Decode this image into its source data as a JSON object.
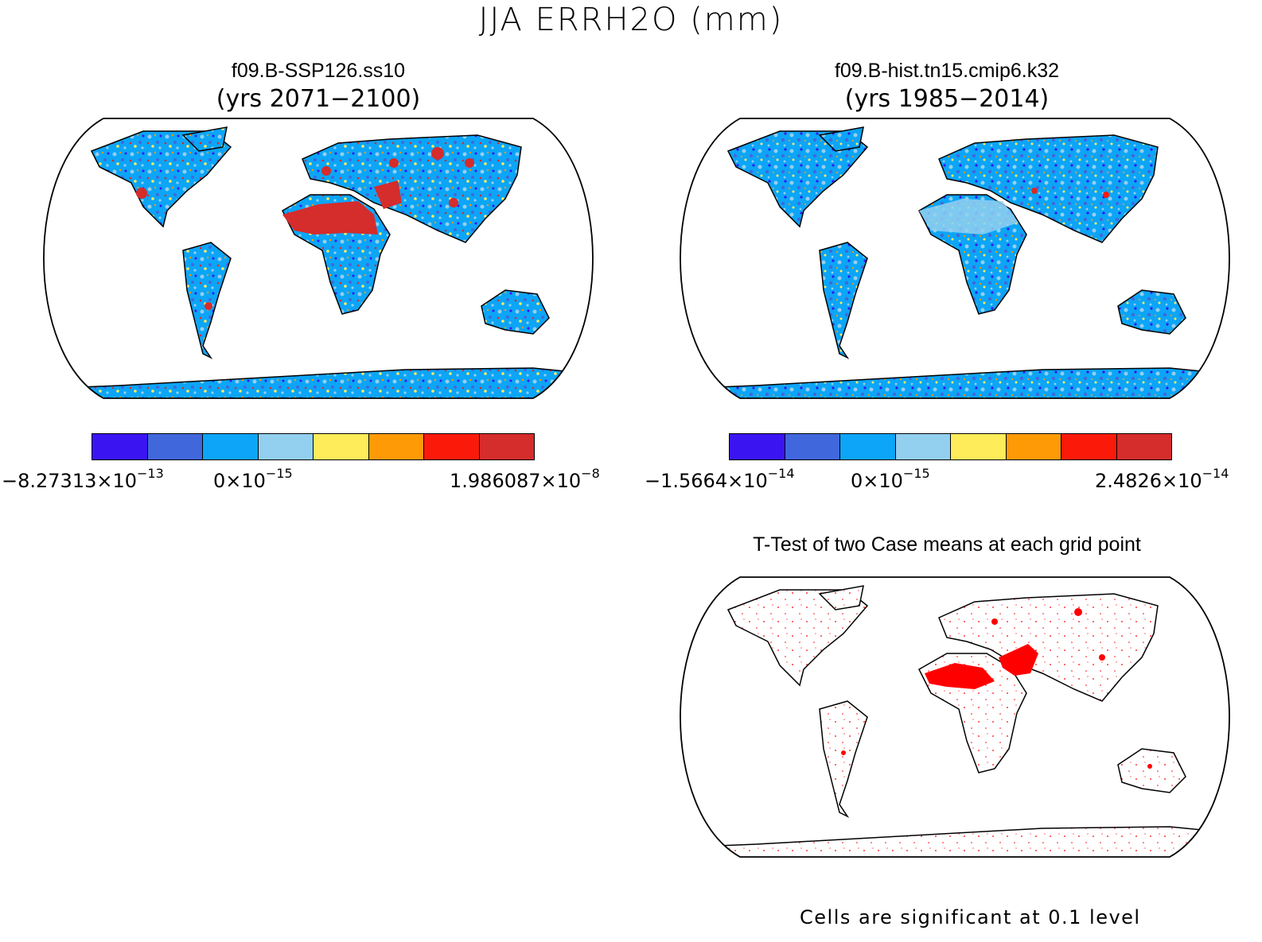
{
  "figure": {
    "title": "JJA ERRH2O (mm)",
    "footnote": "Cells are significant at 0.1 level"
  },
  "panels": [
    {
      "id": "ssp126",
      "title": "f09.B-SSP126.ss10",
      "subtitle": "(yrs 2071−2100)",
      "colorbar": {
        "colors": [
          "#3b14f2",
          "#4167dc",
          "#0ca5f7",
          "#93cfef",
          "#feec5b",
          "#fd9a06",
          "#fb1a0a",
          "#d52c2c"
        ],
        "left_label": "−8.27313×10",
        "left_exp": "−13",
        "mid_label": "0×10",
        "mid_exp": "−15",
        "right_label": "1.986087×10",
        "right_exp": "−8"
      }
    },
    {
      "id": "hist",
      "title": "f09.B-hist.tn15.cmip6.k32",
      "subtitle": "(yrs 1985−2014)",
      "colorbar": {
        "colors": [
          "#3b14f2",
          "#4167dc",
          "#0ca5f7",
          "#93cfef",
          "#feec5b",
          "#fd9a06",
          "#fb1a0a",
          "#d52c2c"
        ],
        "left_label": "−1.5664×10",
        "left_exp": "−14",
        "mid_label": "0×10",
        "mid_exp": "−15",
        "right_label": "2.4826×10",
        "right_exp": "−14"
      }
    },
    {
      "id": "ttest",
      "title": "T-Test of two Case means at each grid point",
      "significance_color": "#ff0000"
    }
  ]
}
